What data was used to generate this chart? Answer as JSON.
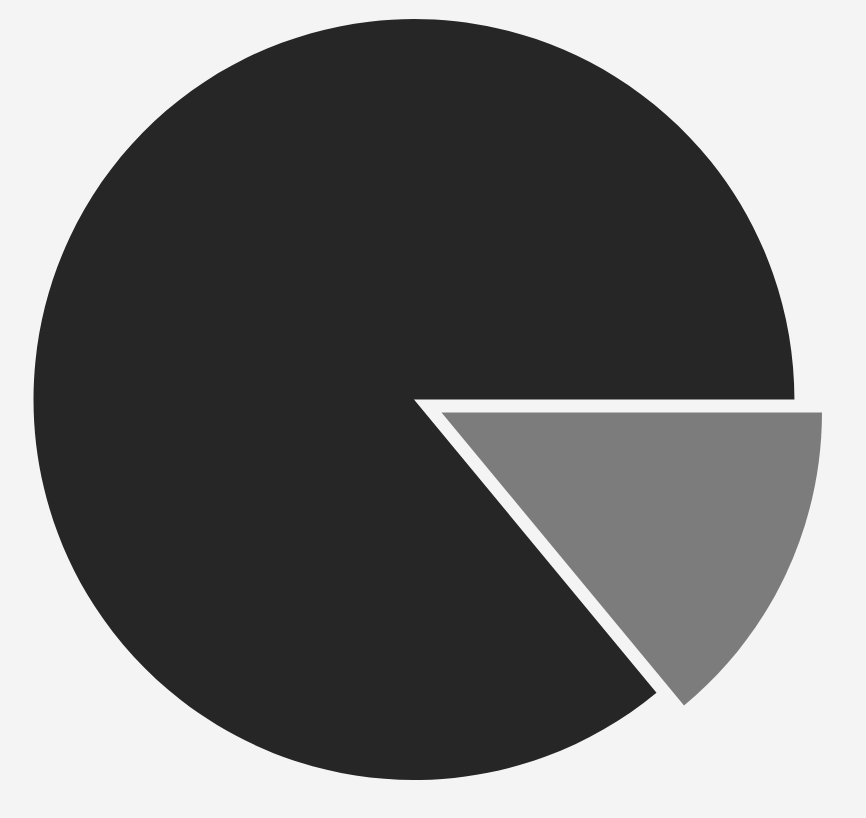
{
  "chart_data": {
    "type": "pie",
    "categories": [
      null,
      null
    ],
    "values": [
      86,
      14
    ],
    "colors": [
      "#262626",
      "#7c7c7c"
    ]
  }
}
